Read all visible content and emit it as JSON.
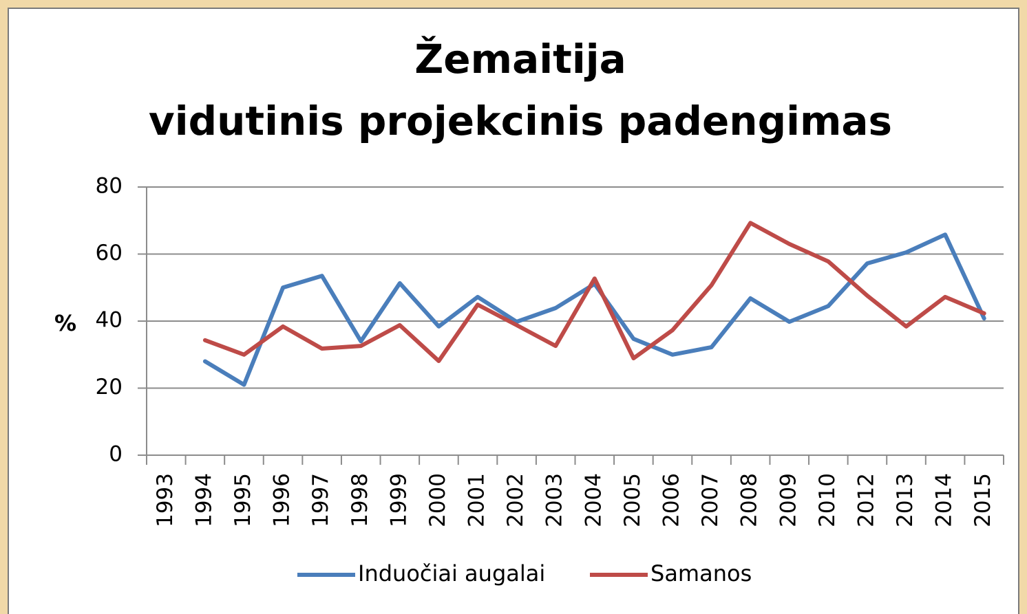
{
  "chart_data": {
    "type": "line",
    "title": [
      "Žemaitija",
      "vidutinis projekcinis padengimas"
    ],
    "ylabel": "%",
    "categories": [
      "1993",
      "1994",
      "1995",
      "1996",
      "1997",
      "1998",
      "1999",
      "2000",
      "2001",
      "2002",
      "2003",
      "2004",
      "2005",
      "2006",
      "2007",
      "2008",
      "2009",
      "2010",
      "2012",
      "2013",
      "2014",
      "2015"
    ],
    "series": [
      {
        "name": "Induočiai augalai",
        "color": "#4a7ebb",
        "values": [
          null,
          28,
          21,
          50,
          53.5,
          34,
          51.3,
          38.4,
          47.2,
          39.8,
          43.9,
          51.1,
          34.7,
          30,
          32.2,
          46.8,
          39.8,
          44.5,
          57.2,
          60.5,
          65.8,
          40.8
        ]
      },
      {
        "name": "Samanos",
        "color": "#be4b48",
        "values": [
          null,
          34.3,
          30,
          38.4,
          31.8,
          32.6,
          38.8,
          28.1,
          44.9,
          38.8,
          32.6,
          52.7,
          28.9,
          37.3,
          50.7,
          69.3,
          63,
          57.8,
          47.6,
          38.4,
          47.2,
          42.3
        ]
      }
    ],
    "ylim": [
      0,
      80
    ],
    "yticks": [
      0,
      20,
      40,
      60,
      80
    ],
    "grid": true,
    "legend": "bottom"
  }
}
